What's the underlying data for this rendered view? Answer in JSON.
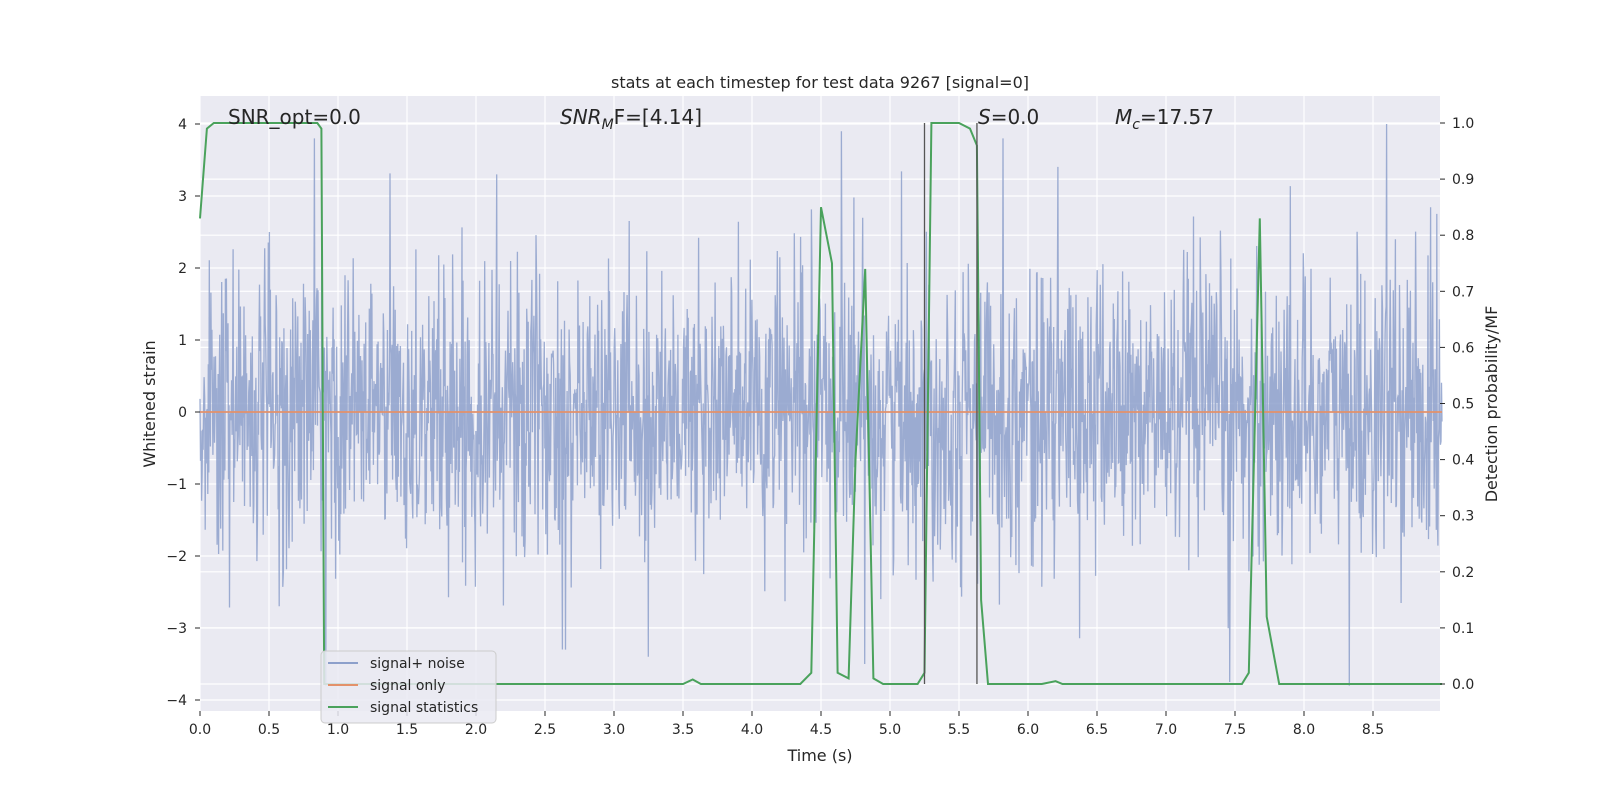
{
  "chart_data": {
    "type": "line",
    "title": "stats at each timestep for test data 9267 [signal=0]",
    "xlabel": "Time (s)",
    "ylabel_left": "Whitened strain",
    "ylabel_right": "Detection probability/MF",
    "xlim": [
      0.0,
      9.0
    ],
    "ylim_left": [
      -4.2,
      4.4
    ],
    "ylim_right": [
      -0.05,
      1.05
    ],
    "x_ticks": [
      0.0,
      0.5,
      1.0,
      1.5,
      2.0,
      2.5,
      3.0,
      3.5,
      4.0,
      4.5,
      5.0,
      5.5,
      6.0,
      6.5,
      7.0,
      7.5,
      8.0,
      8.5
    ],
    "x_tick_labels": [
      "0.0",
      "0.5",
      "1.0",
      "1.5",
      "2.0",
      "2.5",
      "3.0",
      "3.5",
      "4.0",
      "4.5",
      "5.0",
      "5.5",
      "6.0",
      "6.5",
      "7.0",
      "7.5",
      "8.0",
      "8.5"
    ],
    "y_left_ticks": [
      -4,
      -3,
      -2,
      -1,
      0,
      1,
      2,
      3,
      4
    ],
    "y_left_tick_labels": [
      "−4",
      "−3",
      "−2",
      "−1",
      "0",
      "1",
      "2",
      "3",
      "4"
    ],
    "y_right_ticks": [
      0.0,
      0.1,
      0.2,
      0.3,
      0.4,
      0.5,
      0.6,
      0.7,
      0.8,
      0.9,
      1.0
    ],
    "y_right_tick_labels": [
      "0.0",
      "0.1",
      "0.2",
      "0.3",
      "0.4",
      "0.5",
      "0.6",
      "0.7",
      "0.8",
      "0.9",
      "1.0"
    ],
    "grid": true,
    "legend": {
      "placement": "lower-left",
      "entries": [
        {
          "label": "signal+ noise",
          "color": "#8da0cb"
        },
        {
          "label": "signal only",
          "color": "#e3916a"
        },
        {
          "label": "signal statistics",
          "color": "#4aa25c"
        }
      ]
    },
    "annotations": {
      "snr_opt": "SNR_opt=0.0",
      "snr_mf_base": "SNR",
      "snr_mf_sub": "M",
      "snr_mf_rest": "F=[4.14]",
      "s_label": "S",
      "s_rest": "=0.0",
      "mc_base": "M",
      "mc_sub": "c",
      "mc_rest": "=17.57"
    },
    "series": [
      {
        "name": "signal+ noise",
        "axis": "left",
        "color": "#8da0cb",
        "description_values": "whitened strain noise, roughly gaussian, range about -3.8 to 4.0",
        "spikes": [
          {
            "x": 0.88,
            "y": 2.2
          },
          {
            "x": 0.91,
            "y": -3.8
          },
          {
            "x": 2.15,
            "y": 3.3
          },
          {
            "x": 4.65,
            "y": 3.9
          },
          {
            "x": 5.82,
            "y": 3.8
          },
          {
            "x": 7.46,
            "y": -3.75
          },
          {
            "x": 8.33,
            "y": -3.8
          },
          {
            "x": 8.6,
            "y": 4.0
          },
          {
            "x": 0.83,
            "y": 3.8
          },
          {
            "x": 2.65,
            "y": -3.3
          },
          {
            "x": 3.25,
            "y": -3.4
          }
        ]
      },
      {
        "name": "signal only",
        "axis": "left",
        "color": "#e3916a",
        "x": [
          0.0,
          9.0
        ],
        "y": [
          0.0,
          0.0
        ]
      },
      {
        "name": "signal statistics",
        "axis": "right",
        "color": "#4aa25c",
        "x": [
          0.0,
          0.05,
          0.1,
          0.2,
          0.3,
          0.5,
          0.7,
          0.8,
          0.85,
          0.88,
          0.9,
          0.93,
          0.96,
          1.0,
          1.5,
          2.0,
          2.5,
          3.0,
          3.5,
          3.57,
          3.63,
          3.7,
          4.0,
          4.35,
          4.43,
          4.5,
          4.58,
          4.62,
          4.7,
          4.75,
          4.82,
          4.88,
          4.95,
          5.0,
          5.2,
          5.25,
          5.3,
          5.4,
          5.5,
          5.58,
          5.63,
          5.66,
          5.71,
          5.75,
          6.0,
          6.1,
          6.2,
          6.25,
          6.5,
          7.0,
          7.55,
          7.6,
          7.68,
          7.73,
          7.82,
          8.0,
          8.5,
          9.0
        ],
        "y": [
          0.83,
          0.99,
          1.0,
          1.0,
          1.0,
          1.0,
          1.0,
          1.0,
          1.0,
          0.99,
          0.0,
          0.0,
          0.0,
          0.0,
          0.0,
          0.0,
          0.0,
          0.0,
          0.0,
          0.008,
          0.0,
          0.0,
          0.0,
          0.0,
          0.02,
          0.85,
          0.75,
          0.02,
          0.01,
          0.4,
          0.74,
          0.01,
          0.0,
          0.0,
          0.0,
          0.02,
          1.0,
          1.0,
          1.0,
          0.99,
          0.96,
          0.15,
          0.0,
          0.0,
          0.0,
          0.0,
          0.005,
          0.0,
          0.0,
          0.0,
          0.0,
          0.02,
          0.83,
          0.12,
          0.0,
          0.0,
          0.0,
          0.0
        ]
      }
    ],
    "vlines": [
      5.25,
      5.63
    ]
  }
}
